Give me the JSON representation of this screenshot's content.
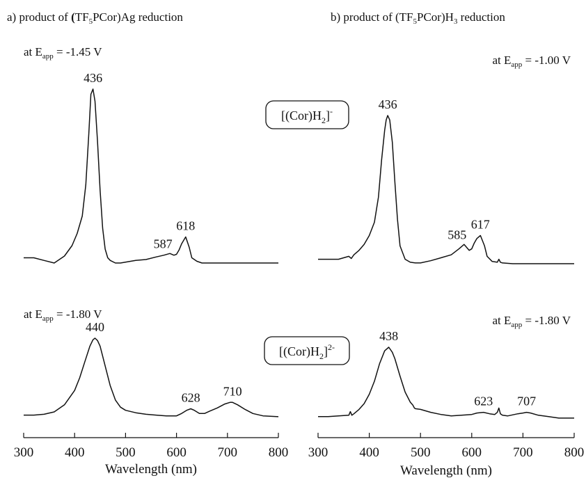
{
  "chart_data": [
    {
      "type": "line",
      "panel": "a",
      "title": "a) product of (TF5PCor)Ag reduction",
      "title_parts": {
        "pre": "a) product of ",
        "bold_paren": "(",
        "t1": "TF",
        "sub1": "5",
        "t2": "PCor)Ag reduction"
      },
      "xlabel": "Wavelength (nm)",
      "xlim": [
        300,
        800
      ],
      "xticks": [
        "300",
        "400",
        "500",
        "600",
        "700",
        "800"
      ],
      "grid": false,
      "traces": [
        {
          "potential": {
            "pre": "at E",
            "sub": "app",
            "post": " = -1.45 V"
          },
          "species": {
            "pre": "[(Cor)H",
            "sub": "2",
            "post": "]",
            "sup": "-"
          },
          "peak_labels": [
            {
              "x": 436,
              "text": "436"
            },
            {
              "x": 587,
              "text": "587"
            },
            {
              "x": 618,
              "text": "618"
            }
          ],
          "x": [
            300,
            320,
            340,
            360,
            380,
            395,
            405,
            415,
            422,
            428,
            432,
            436,
            440,
            445,
            450,
            455,
            460,
            465,
            470,
            480,
            490,
            500,
            520,
            540,
            560,
            575,
            587,
            595,
            600,
            605,
            610,
            618,
            625,
            630,
            640,
            650,
            660,
            680,
            700,
            750,
            800
          ],
          "y": [
            0.03,
            0.03,
            0.015,
            0.0,
            0.04,
            0.1,
            0.17,
            0.27,
            0.45,
            0.75,
            0.97,
            1.0,
            0.93,
            0.7,
            0.42,
            0.2,
            0.08,
            0.03,
            0.015,
            0.0,
            0.0,
            0.005,
            0.015,
            0.02,
            0.035,
            0.045,
            0.055,
            0.045,
            0.05,
            0.075,
            0.11,
            0.15,
            0.09,
            0.03,
            0.01,
            0.0,
            0.0,
            0.0,
            0.0,
            0.0,
            0.0
          ]
        },
        {
          "potential": {
            "pre": "at E",
            "sub": "app",
            "post": " = -1.80 V"
          },
          "species": {
            "pre": "[(Cor)H",
            "sub": "2",
            "post": "]",
            "sup": "2-"
          },
          "peak_labels": [
            {
              "x": 440,
              "text": "440"
            },
            {
              "x": 628,
              "text": "628"
            },
            {
              "x": 710,
              "text": "710"
            }
          ],
          "x": [
            300,
            320,
            340,
            360,
            380,
            400,
            410,
            420,
            430,
            436,
            440,
            445,
            450,
            460,
            470,
            480,
            490,
            500,
            520,
            540,
            560,
            580,
            600,
            610,
            620,
            628,
            635,
            645,
            655,
            665,
            680,
            695,
            705,
            710,
            720,
            735,
            750,
            770,
            800
          ],
          "y": [
            0.03,
            0.03,
            0.04,
            0.07,
            0.16,
            0.34,
            0.5,
            0.7,
            0.9,
            0.98,
            1.0,
            0.97,
            0.9,
            0.65,
            0.4,
            0.22,
            0.13,
            0.09,
            0.06,
            0.04,
            0.03,
            0.02,
            0.02,
            0.05,
            0.09,
            0.11,
            0.09,
            0.05,
            0.05,
            0.08,
            0.12,
            0.17,
            0.19,
            0.19,
            0.16,
            0.1,
            0.05,
            0.02,
            0.01
          ]
        }
      ]
    },
    {
      "type": "line",
      "panel": "b",
      "title": "b) product of (TF5PCor)H3 reduction",
      "title_parts": {
        "pre": "b) product of (",
        "t1": "TF",
        "sub1": "5",
        "t2": "PCor)H",
        "sub2": "3",
        "t3": " reduction"
      },
      "xlabel": "Wavelength (nm)",
      "xlim": [
        300,
        800
      ],
      "xticks": [
        "300",
        "400",
        "500",
        "600",
        "700",
        "800"
      ],
      "grid": false,
      "traces": [
        {
          "potential": {
            "pre": "at E",
            "sub": "app",
            "post": " = -1.00 V"
          },
          "peak_labels": [
            {
              "x": 436,
              "text": "436"
            },
            {
              "x": 585,
              "text": "585"
            },
            {
              "x": 617,
              "text": "617"
            }
          ],
          "x": [
            300,
            320,
            340,
            360,
            365,
            370,
            380,
            390,
            400,
            410,
            418,
            424,
            430,
            433,
            436,
            440,
            445,
            450,
            455,
            460,
            470,
            480,
            490,
            500,
            520,
            540,
            560,
            575,
            585,
            595,
            600,
            605,
            610,
            617,
            625,
            630,
            640,
            650,
            653,
            656,
            660,
            680,
            700,
            750,
            800
          ],
          "y": [
            0.03,
            0.03,
            0.03,
            0.05,
            0.035,
            0.06,
            0.09,
            0.13,
            0.19,
            0.28,
            0.45,
            0.7,
            0.9,
            0.97,
            1.0,
            0.97,
            0.82,
            0.55,
            0.3,
            0.12,
            0.03,
            0.01,
            0.005,
            0.005,
            0.02,
            0.04,
            0.06,
            0.1,
            0.13,
            0.09,
            0.1,
            0.14,
            0.17,
            0.19,
            0.12,
            0.05,
            0.015,
            0.01,
            0.03,
            0.01,
            0.005,
            0.0,
            0.0,
            0.0,
            0.0
          ]
        },
        {
          "potential": {
            "pre": "at E",
            "sub": "app",
            "post": " = -1.80 V"
          },
          "peak_labels": [
            {
              "x": 438,
              "text": "438"
            },
            {
              "x": 623,
              "text": "623"
            },
            {
              "x": 707,
              "text": "707"
            }
          ],
          "x": [
            300,
            320,
            340,
            360,
            363,
            366,
            370,
            380,
            390,
            400,
            410,
            420,
            430,
            438,
            445,
            450,
            460,
            470,
            480,
            485,
            488,
            490,
            500,
            520,
            540,
            560,
            580,
            600,
            610,
            623,
            635,
            645,
            650,
            653,
            656,
            660,
            670,
            690,
            700,
            707,
            715,
            730,
            750,
            770,
            800
          ],
          "y": [
            0.04,
            0.04,
            0.05,
            0.06,
            0.11,
            0.06,
            0.08,
            0.14,
            0.22,
            0.35,
            0.53,
            0.77,
            0.95,
            1.0,
            0.93,
            0.84,
            0.6,
            0.38,
            0.24,
            0.2,
            0.16,
            0.15,
            0.14,
            0.1,
            0.07,
            0.05,
            0.06,
            0.07,
            0.09,
            0.1,
            0.08,
            0.07,
            0.1,
            0.16,
            0.08,
            0.06,
            0.05,
            0.08,
            0.09,
            0.1,
            0.09,
            0.06,
            0.04,
            0.02,
            0.02
          ]
        }
      ]
    }
  ]
}
